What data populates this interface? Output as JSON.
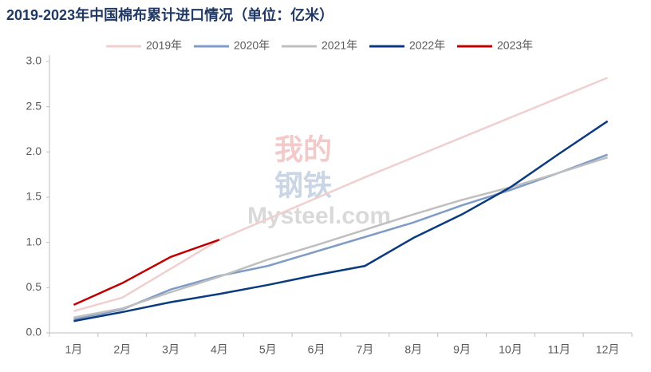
{
  "chart_data": {
    "type": "line",
    "title": "2019-2023年中国棉布累计进口情况（单位：亿米）",
    "watermark": [
      "我的",
      "钢铁",
      "Mysteel.com"
    ],
    "categories": [
      "1月",
      "2月",
      "3月",
      "4月",
      "5月",
      "6月",
      "7月",
      "8月",
      "9月",
      "10月",
      "11月",
      "12月"
    ],
    "series": [
      {
        "name": "2019年",
        "color": "#f0cfd0",
        "values": [
          0.24,
          0.39,
          0.71,
          1.03,
          1.26,
          1.49,
          1.72,
          1.94,
          2.16,
          2.38,
          2.6,
          2.82
        ]
      },
      {
        "name": "2020年",
        "color": "#7f9cc6",
        "values": [
          0.15,
          0.26,
          0.48,
          0.63,
          0.74,
          0.9,
          1.06,
          1.22,
          1.41,
          1.58,
          1.77,
          1.97
        ]
      },
      {
        "name": "2021年",
        "color": "#bfbfbf",
        "values": [
          0.17,
          0.27,
          0.45,
          0.62,
          0.81,
          0.97,
          1.14,
          1.31,
          1.47,
          1.61,
          1.77,
          1.94
        ]
      },
      {
        "name": "2022年",
        "color": "#0b3a7e",
        "values": [
          0.13,
          0.23,
          0.34,
          0.43,
          0.53,
          0.64,
          0.74,
          1.05,
          1.31,
          1.61,
          1.98,
          2.34
        ]
      },
      {
        "name": "2023年",
        "color": "#c00000",
        "values": [
          0.31,
          0.55,
          0.84,
          1.03,
          null,
          null,
          null,
          null,
          null,
          null,
          null,
          null
        ]
      }
    ],
    "ylim": [
      0,
      3
    ],
    "yticks": [
      {
        "value": 0,
        "label": "0.0"
      },
      0.5,
      {
        "value": 1,
        "label": "1.0"
      },
      1.5,
      {
        "value": 2,
        "label": "2.0"
      },
      2.5,
      {
        "value": 3,
        "label": "3.0"
      }
    ],
    "legend": "top"
  }
}
